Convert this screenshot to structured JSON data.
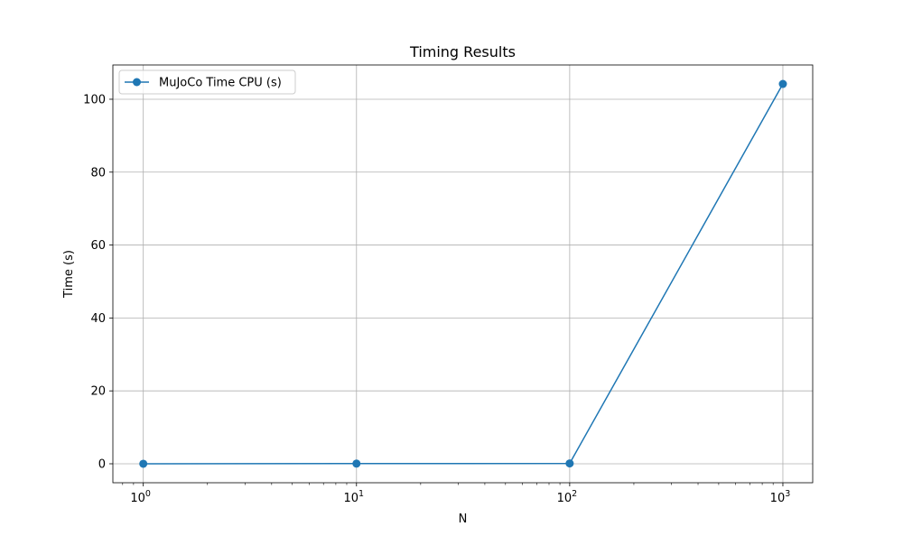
{
  "chart_data": {
    "type": "line",
    "title": "Timing Results",
    "xlabel": "N",
    "ylabel": "Time (s)",
    "xscale": "log",
    "xlim": [
      0.72,
      1380
    ],
    "ylim": [
      -5.2,
      109.4
    ],
    "x_ticks": [
      {
        "value": 1,
        "base": "10",
        "exp": "0"
      },
      {
        "value": 10,
        "base": "10",
        "exp": "1"
      },
      {
        "value": 100,
        "base": "10",
        "exp": "2"
      },
      {
        "value": 1000,
        "base": "10",
        "exp": "3"
      }
    ],
    "y_ticks": [
      0,
      20,
      40,
      60,
      80,
      100
    ],
    "grid": true,
    "legend": "upper left",
    "series": [
      {
        "name": "MuJoCo Time CPU (s)",
        "color": "#1f77b4",
        "marker": "circle",
        "x": [
          1,
          10,
          100,
          1000
        ],
        "y": [
          0.01,
          0.05,
          0.1,
          104.2
        ]
      }
    ]
  }
}
